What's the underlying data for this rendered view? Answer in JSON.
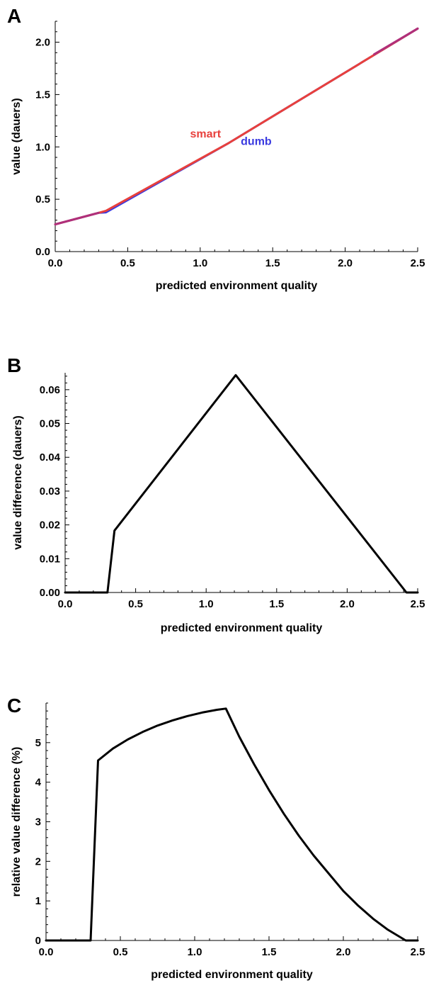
{
  "chart_data": [
    {
      "type": "line",
      "panel_label": "A",
      "xlabel": "predicted environment quality",
      "ylabel": "value (dauers)",
      "xlim": [
        0,
        2.5
      ],
      "ylim": [
        0,
        2.2
      ],
      "xticks": [
        0.0,
        0.5,
        1.0,
        1.5,
        2.0,
        2.5
      ],
      "xtick_labels": [
        "0.0",
        "0.5",
        "1.0",
        "1.5",
        "2.0",
        "2.5"
      ],
      "yticks": [
        0.0,
        0.5,
        1.0,
        1.5,
        2.0
      ],
      "ytick_labels": [
        "0.0",
        "0.5",
        "1.0",
        "1.5",
        "2.0"
      ],
      "series": [
        {
          "name": "smart",
          "color": "#e8403c",
          "x": [
            0.0,
            0.3,
            0.35,
            1.2,
            2.5
          ],
          "y": [
            0.26,
            0.37,
            0.39,
            1.04,
            2.13
          ]
        },
        {
          "name": "dumb",
          "color": "#3a3ae0",
          "x": [
            0.0,
            0.3,
            0.35,
            1.2,
            2.5
          ],
          "y": [
            0.26,
            0.37,
            0.375,
            1.04,
            2.13
          ]
        }
      ],
      "annotations": [
        {
          "text": "smart",
          "color": "#e8403c",
          "x": 0.93,
          "y": 1.09
        },
        {
          "text": "dumb",
          "color": "#3a3ae0",
          "x": 1.28,
          "y": 1.02
        }
      ]
    },
    {
      "type": "line",
      "panel_label": "B",
      "xlabel": "predicted environment quality",
      "ylabel": "value difference (dauers)",
      "xlim": [
        0,
        2.5
      ],
      "ylim": [
        0,
        0.065
      ],
      "xticks": [
        0.0,
        0.5,
        1.0,
        1.5,
        2.0,
        2.5
      ],
      "xtick_labels": [
        "0.0",
        "0.5",
        "1.0",
        "1.5",
        "2.0",
        "2.5"
      ],
      "yticks": [
        0.0,
        0.01,
        0.02,
        0.03,
        0.04,
        0.05,
        0.06
      ],
      "ytick_labels": [
        "0.00",
        "0.01",
        "0.02",
        "0.03",
        "0.04",
        "0.05",
        "0.06"
      ],
      "series": [
        {
          "color": "#000000",
          "x": [
            0.0,
            0.3,
            0.35,
            1.21,
            2.42,
            2.5
          ],
          "y": [
            0.0,
            0.0,
            0.0183,
            0.0643,
            0.0,
            0.0
          ]
        }
      ]
    },
    {
      "type": "line",
      "panel_label": "C",
      "xlabel": "predicted environment quality",
      "ylabel": "relative value difference (%)",
      "xlim": [
        0,
        2.5
      ],
      "ylim": [
        0,
        6
      ],
      "xticks": [
        0.0,
        0.5,
        1.0,
        1.5,
        2.0,
        2.5
      ],
      "xtick_labels": [
        "0.0",
        "0.5",
        "1.0",
        "1.5",
        "2.0",
        "2.5"
      ],
      "yticks": [
        0,
        1,
        2,
        3,
        4,
        5
      ],
      "ytick_labels": [
        "0",
        "1",
        "2",
        "3",
        "4",
        "5"
      ],
      "series": [
        {
          "color": "#000000",
          "x": [
            0.0,
            0.3,
            0.35,
            0.45,
            0.55,
            0.65,
            0.75,
            0.85,
            0.95,
            1.05,
            1.15,
            1.21,
            1.3,
            1.4,
            1.5,
            1.6,
            1.7,
            1.8,
            1.9,
            2.0,
            2.1,
            2.2,
            2.3,
            2.42,
            2.5
          ],
          "y": [
            0.0,
            0.0,
            4.55,
            4.85,
            5.08,
            5.27,
            5.43,
            5.56,
            5.67,
            5.76,
            5.83,
            5.86,
            5.15,
            4.45,
            3.8,
            3.2,
            2.65,
            2.15,
            1.7,
            1.25,
            0.88,
            0.55,
            0.27,
            0.0,
            0.0
          ]
        }
      ]
    }
  ]
}
